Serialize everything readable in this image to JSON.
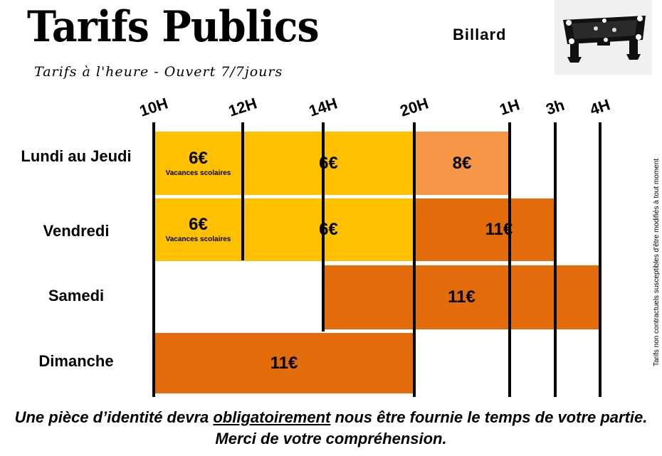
{
  "header": {
    "title": "Tarifs Publics",
    "subtitle": "Tarifs à l'heure - Ouvert 7/7jours",
    "game": "Billard",
    "icon": "billiard-table-icon"
  },
  "hours": [
    "10H",
    "12H",
    "14H",
    "20H",
    "1H",
    "3h",
    "4H"
  ],
  "rows": [
    {
      "label": "Lundi au Jeudi"
    },
    {
      "label": "Vendredi"
    },
    {
      "label": "Samedi"
    },
    {
      "label": "Dimanche"
    }
  ],
  "bars": {
    "mon_thu": [
      {
        "price": "6€",
        "note": "Vacances scolaires",
        "color": "#FFC000"
      },
      {
        "price": "6€",
        "color": "#FFC000"
      },
      {
        "price": "8€",
        "color": "#F79646"
      }
    ],
    "fri": [
      {
        "price": "6€",
        "note": "Vacances scolaires",
        "color": "#FFC000"
      },
      {
        "price": "6€",
        "color": "#FFC000"
      },
      {
        "price": "11€",
        "color": "#E26B0A"
      }
    ],
    "sat": [
      {
        "price": "11€",
        "color": "#E26B0A"
      }
    ],
    "sun": [
      {
        "price": "11€",
        "color": "#E26B0A"
      }
    ]
  },
  "side_note": "Tarifs non contractuels susceptibles d'être modifiés à tout moment",
  "footer": {
    "pre": "Une pièce d’identité devra ",
    "emph": "obligatoirement",
    "post": " nous être fournie le temps de votre partie. Merci de votre compréhension."
  }
}
